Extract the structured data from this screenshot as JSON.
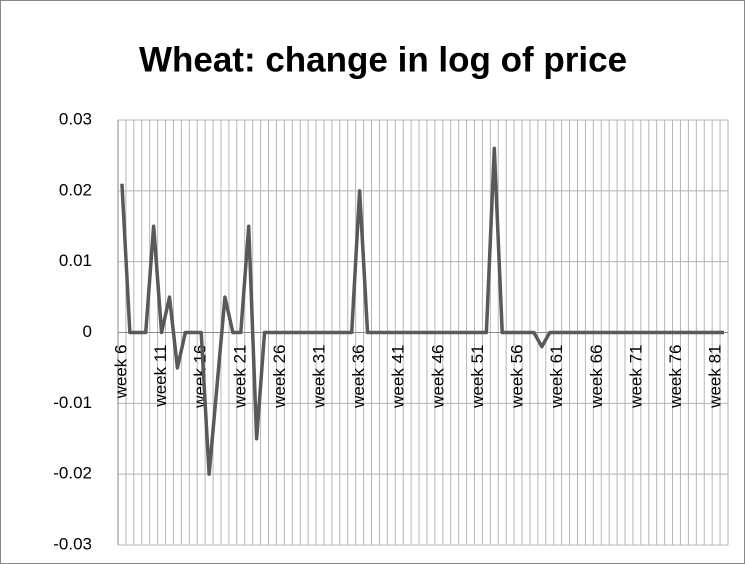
{
  "chart_data": {
    "type": "line",
    "title": "Wheat: change in log of price",
    "categories": [
      "week 6",
      null,
      null,
      null,
      null,
      "week 11",
      null,
      null,
      null,
      null,
      "week 16",
      null,
      null,
      null,
      null,
      "week 21",
      null,
      null,
      null,
      null,
      "week 26",
      null,
      null,
      null,
      null,
      "week 31",
      null,
      null,
      null,
      null,
      "week 36",
      null,
      null,
      null,
      null,
      "week 41",
      null,
      null,
      null,
      null,
      "week 46",
      null,
      null,
      null,
      null,
      "week 51",
      null,
      null,
      null,
      null,
      "week 56",
      null,
      null,
      null,
      null,
      "week 61",
      null,
      null,
      null,
      null,
      "week 66",
      null,
      null,
      null,
      null,
      "week 71",
      null,
      null,
      null,
      null,
      "week 76",
      null,
      null,
      null,
      null,
      "week 81",
      null
    ],
    "values": [
      0.021,
      0,
      0,
      0,
      0.015,
      0,
      0.005,
      -0.005,
      0,
      0,
      0,
      -0.02,
      -0.0075,
      0.005,
      0,
      0,
      0.015,
      -0.015,
      0,
      0,
      0,
      0,
      0,
      0,
      0,
      0,
      0,
      0,
      0,
      0,
      0.02,
      0,
      0,
      0,
      0,
      0,
      0,
      0,
      0,
      0,
      0,
      0,
      0,
      0,
      0,
      0,
      0,
      0.026,
      0,
      0,
      0,
      0,
      0,
      -0.002,
      0,
      0,
      0,
      0,
      0,
      0,
      0,
      0,
      0,
      0,
      0,
      0,
      0,
      0,
      0,
      0,
      0,
      0,
      0,
      0,
      0,
      0,
      0
    ],
    "color": "#595959",
    "ylim": [
      -0.03,
      0.03
    ],
    "yticks": [
      -0.03,
      -0.02,
      -0.01,
      0,
      0.01,
      0.02,
      0.03
    ],
    "grid": true
  }
}
